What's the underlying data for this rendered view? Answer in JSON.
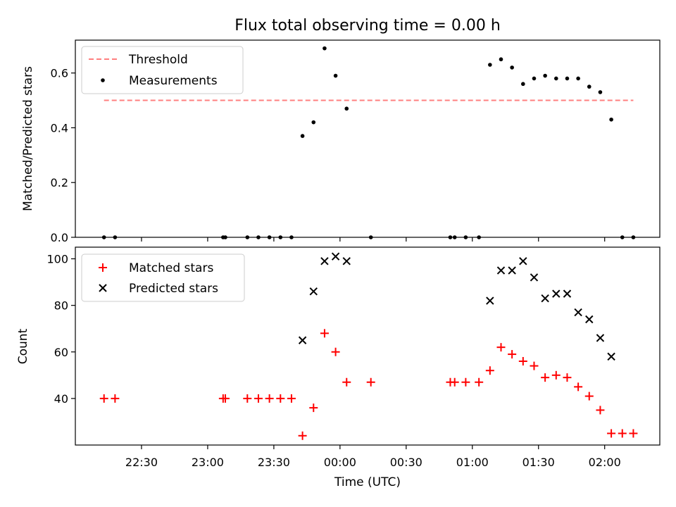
{
  "chart_data": [
    {
      "type": "scatter",
      "title": "Flux total observing time = 0.00 h",
      "ylabel": "Matched/Predicted stars",
      "ylim": [
        0,
        0.72
      ],
      "yticks": [
        "0.0",
        "0.2",
        "0.4",
        "0.6"
      ],
      "ytick_values": [
        0,
        0.2,
        0.4,
        0.6
      ],
      "grid": false,
      "legend": {
        "placement": "top-left"
      },
      "threshold": {
        "name": "Threshold",
        "value": 0.5,
        "x_range": [
          "22:13",
          "02:13"
        ],
        "color": "#ff7f7f",
        "style": "dashed"
      },
      "series": [
        {
          "name": "Measurements",
          "marker": "dot",
          "color": "#000000",
          "x": [
            "22:13",
            "22:18",
            "23:07",
            "23:08",
            "23:18",
            "23:23",
            "23:28",
            "23:33",
            "23:38",
            "23:43",
            "23:48",
            "23:53",
            "23:58",
            "00:03",
            "00:14",
            "00:50",
            "00:52",
            "00:57",
            "01:03",
            "01:08",
            "01:13",
            "01:18",
            "01:23",
            "01:28",
            "01:33",
            "01:38",
            "01:43",
            "01:48",
            "01:53",
            "01:58",
            "02:03",
            "02:08",
            "02:13"
          ],
          "y": [
            0,
            0,
            0,
            0,
            0,
            0,
            0,
            0,
            0,
            0.37,
            0.42,
            0.69,
            0.59,
            0.47,
            0,
            0,
            0,
            0,
            0,
            0.63,
            0.65,
            0.62,
            0.56,
            0.58,
            0.59,
            0.58,
            0.58,
            0.58,
            0.55,
            0.53,
            0.43,
            0,
            0
          ]
        }
      ]
    },
    {
      "type": "scatter",
      "xlabel": "Time (UTC)",
      "ylabel": "Count",
      "ylim": [
        20,
        105
      ],
      "yticks": [
        "40",
        "60",
        "80",
        "100"
      ],
      "ytick_values": [
        40,
        60,
        80,
        100
      ],
      "x_range": [
        "22:00",
        "02:25"
      ],
      "xticks": [
        "22:30",
        "23:00",
        "23:30",
        "00:00",
        "00:30",
        "01:00",
        "01:30",
        "02:00"
      ],
      "grid": false,
      "legend": {
        "placement": "top-left"
      },
      "series": [
        {
          "name": "Matched stars",
          "marker": "plus",
          "color": "#ff0000",
          "x": [
            "22:13",
            "22:18",
            "23:07",
            "23:08",
            "23:18",
            "23:23",
            "23:28",
            "23:33",
            "23:38",
            "23:43",
            "23:48",
            "23:53",
            "23:58",
            "00:03",
            "00:14",
            "00:50",
            "00:52",
            "00:57",
            "01:03",
            "01:08",
            "01:13",
            "01:18",
            "01:23",
            "01:28",
            "01:33",
            "01:38",
            "01:43",
            "01:48",
            "01:53",
            "01:58",
            "02:03",
            "02:08",
            "02:13"
          ],
          "y": [
            40,
            40,
            40,
            40,
            40,
            40,
            40,
            40,
            40,
            24,
            36,
            68,
            60,
            47,
            47,
            47,
            47,
            47,
            47,
            52,
            62,
            59,
            56,
            54,
            49,
            50,
            49,
            45,
            41,
            35,
            25,
            25,
            25
          ]
        },
        {
          "name": "Predicted stars",
          "marker": "x",
          "color": "#000000",
          "x": [
            "23:43",
            "23:48",
            "23:53",
            "23:58",
            "00:03",
            "01:08",
            "01:13",
            "01:18",
            "01:23",
            "01:28",
            "01:33",
            "01:38",
            "01:43",
            "01:48",
            "01:53",
            "01:58",
            "02:03"
          ],
          "y": [
            65,
            86,
            99,
            101,
            99,
            82,
            95,
            95,
            99,
            92,
            83,
            85,
            85,
            77,
            74,
            66,
            58
          ]
        }
      ]
    }
  ]
}
